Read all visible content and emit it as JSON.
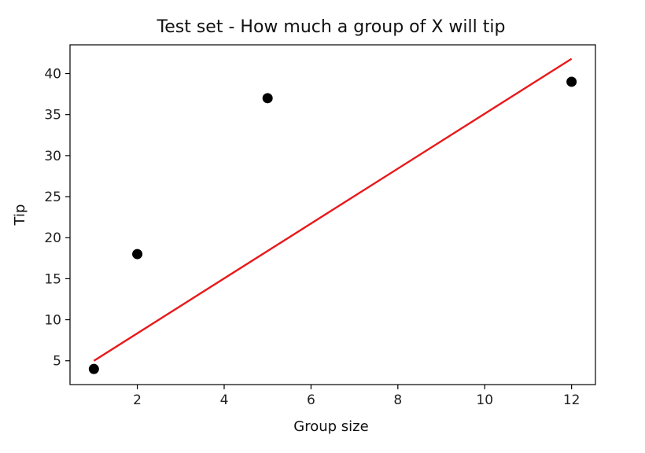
{
  "chart_data": {
    "type": "scatter",
    "title": "Test set - How much a group of X will tip",
    "xlabel": "Group size",
    "ylabel": "Tip",
    "xlim": [
      0.45,
      12.55
    ],
    "ylim": [
      2.1,
      43.5
    ],
    "xticks": [
      2,
      4,
      6,
      8,
      10,
      12
    ],
    "yticks": [
      5,
      10,
      15,
      20,
      25,
      30,
      35,
      40
    ],
    "grid": false,
    "series": [
      {
        "kind": "points",
        "color": "#000000",
        "x": [
          1,
          2,
          5,
          12
        ],
        "y": [
          4,
          18,
          37,
          39
        ]
      },
      {
        "kind": "line",
        "color": "#e8191b",
        "x": [
          1,
          12
        ],
        "y": [
          5.0,
          41.8
        ]
      }
    ]
  }
}
